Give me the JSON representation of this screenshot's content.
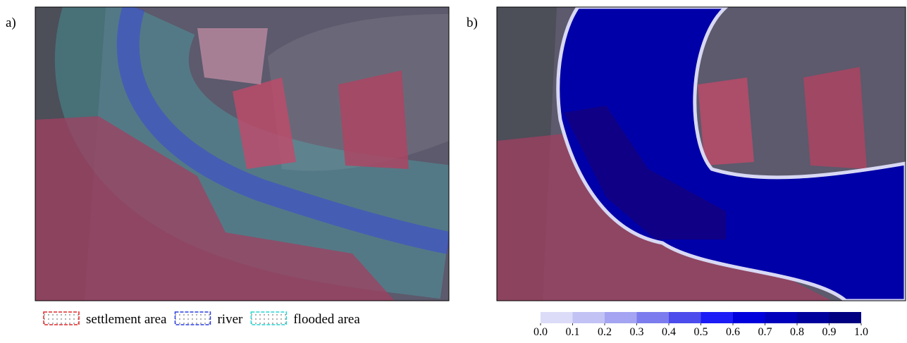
{
  "panels": [
    {
      "label": "a)"
    },
    {
      "label": "b)"
    }
  ],
  "legend": [
    {
      "label": "settlement area",
      "color": "#e02a2a"
    },
    {
      "label": "river",
      "color": "#2a3ee0"
    },
    {
      "label": "flooded area",
      "color": "#2ad4d4"
    }
  ],
  "colorbar": {
    "lim": [
      0,
      1
    ],
    "ticks": [
      {
        "value": 0,
        "label": "0.0"
      },
      {
        "value": 0.1,
        "label": "0.1"
      },
      {
        "value": 0.2,
        "label": "0.2"
      },
      {
        "value": 0.3,
        "label": "0.3"
      },
      {
        "value": 0.4,
        "label": "0.4"
      },
      {
        "value": 0.5,
        "label": "0.5"
      },
      {
        "value": 0.6,
        "label": "0.6"
      },
      {
        "value": 0.7,
        "label": "0.7"
      },
      {
        "value": 0.8,
        "label": "0.8"
      },
      {
        "value": 0.9,
        "label": "0.9"
      },
      {
        "value": 1,
        "label": "1.0"
      }
    ],
    "colors": [
      "#dcdcf8",
      "#c2c2f5",
      "#a4a4f2",
      "#7c7cee",
      "#4c4cec",
      "#1c1cf6",
      "#0000dc",
      "#0000bc",
      "#00009c",
      "#000080"
    ]
  }
}
